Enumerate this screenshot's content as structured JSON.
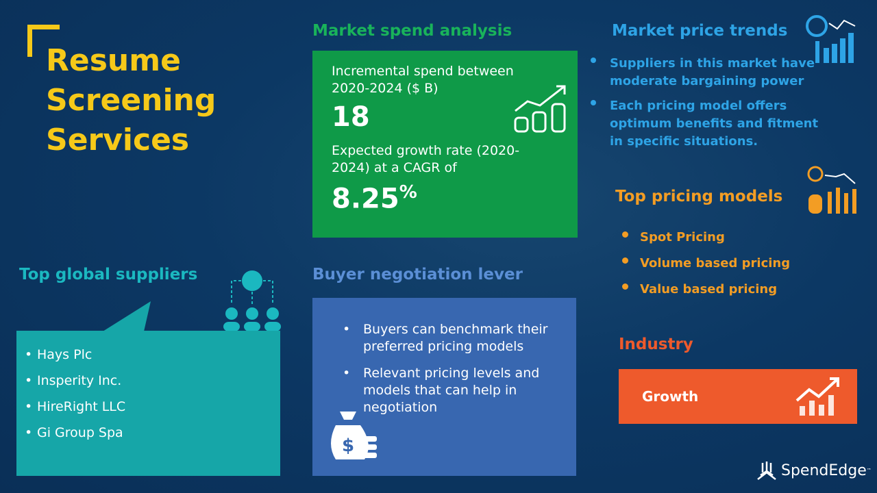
{
  "title": {
    "line1": "Resume",
    "line2": "Screening",
    "line3": "Services"
  },
  "market_spend": {
    "heading": "Market spend analysis",
    "incremental_label": "Incremental spend between 2020-2024 ($ B)",
    "incremental_value": "18",
    "growth_label": "Expected growth rate (2020-2024) at a CAGR of",
    "growth_value": "8.25",
    "growth_unit": "%"
  },
  "price_trends": {
    "heading": "Market price trends",
    "items": [
      "Suppliers in this market have moderate bargaining power",
      "Each pricing model offers optimum benefits and fitment in specific situations."
    ]
  },
  "pricing_models": {
    "heading": "Top pricing models",
    "items": [
      "Spot Pricing",
      "Volume based pricing",
      "Value based pricing"
    ]
  },
  "suppliers": {
    "heading": "Top global suppliers",
    "items": [
      "Hays Plc",
      "Insperity Inc.",
      "HireRight LLC",
      "Gi Group Spa"
    ]
  },
  "negotiation": {
    "heading": "Buyer negotiation lever",
    "items": [
      "Buyers can benchmark their preferred pricing models",
      "Relevant pricing levels and models that can help in negotiation"
    ]
  },
  "industry": {
    "heading": "Industry",
    "value": "Growth"
  },
  "brand": {
    "name": "SpendEdge",
    "tm": "™"
  },
  "colors": {
    "background": "#0c3864",
    "title": "#f6c919",
    "green_panel": "#0f9a48",
    "blue_panel": "#3867b0",
    "teal_panel": "#16a6a8",
    "orange": "#f39d24",
    "growth_panel": "#ee5a2c",
    "cyan": "#2ea4e6"
  }
}
